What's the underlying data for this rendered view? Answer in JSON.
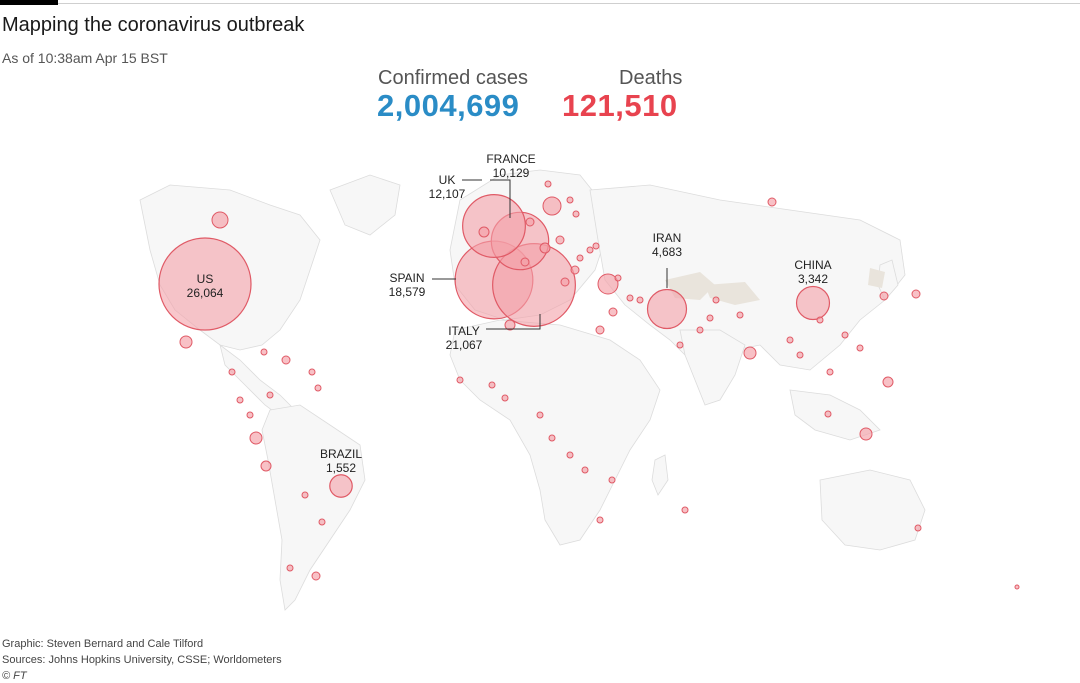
{
  "header": {
    "title": "Mapping the coronavirus outbreak",
    "subtitle": "As of 10:38am Apr 15 BST"
  },
  "totals": {
    "confirmed_label": "Confirmed cases",
    "confirmed_value": "2,004,699",
    "deaths_label": "Deaths",
    "deaths_value": "121,510"
  },
  "colors": {
    "confirmed": "#2a8cc6",
    "deaths": "#e8434f",
    "bubble_fill": "#f4a0a8",
    "bubble_stroke": "#e05a66",
    "land": "#f7f7f7",
    "border": "#dcdcdc"
  },
  "labeled_countries": [
    {
      "name": "US",
      "deaths": "26,064"
    },
    {
      "name": "SPAIN",
      "deaths": "18,579"
    },
    {
      "name": "ITALY",
      "deaths": "21,067"
    },
    {
      "name": "FRANCE",
      "deaths": "10,129"
    },
    {
      "name": "UK",
      "deaths": "12,107"
    },
    {
      "name": "IRAN",
      "deaths": "4,683"
    },
    {
      "name": "CHINA",
      "deaths": "3,342"
    },
    {
      "name": "BRAZIL",
      "deaths": "1,552"
    }
  ],
  "footer": {
    "credit": "Graphic: Steven Bernard and Cale Tilford",
    "sources": "Sources: Johns Hopkins University, CSSE; Worldometers",
    "copyright": "© FT"
  }
}
